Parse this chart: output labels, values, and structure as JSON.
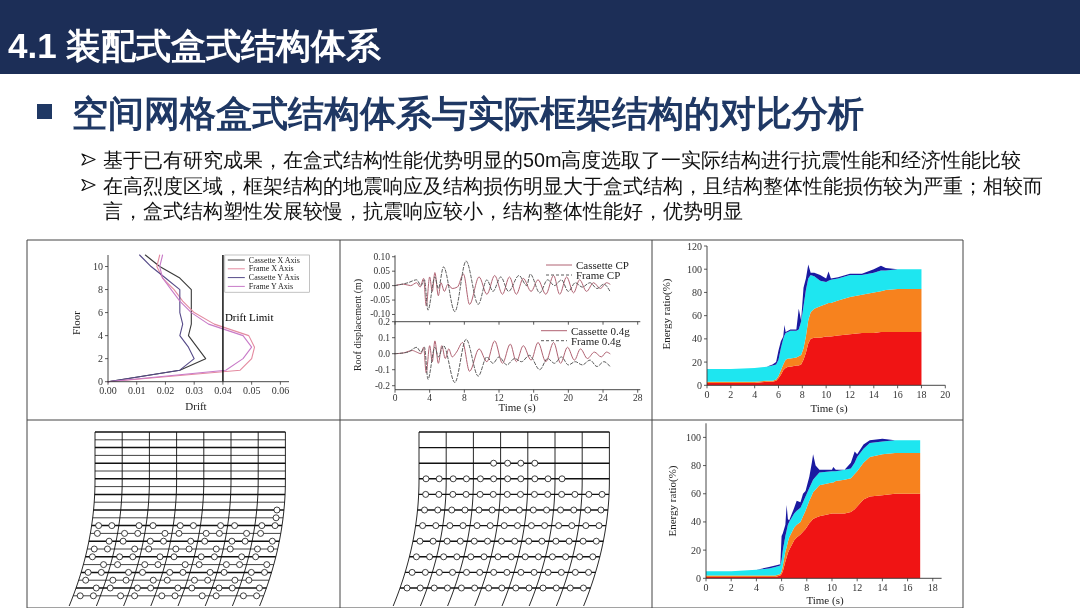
{
  "chart_data": [
    {
      "type": "other",
      "title": "4.1 装配式盒式结构体系",
      "subtitle": "空间网格盒式结构体系与实际框架结构的对比分析",
      "annotations": [
        "基于已有研究成果，在盒式结构性能优势明显的50m高度选取了一实际结构进行抗震性能和经济性能比较",
        "在高烈度区域，框架结构的地震响应及结构损伤明显大于盒式结构，且结构整体性能损伤较为严重；相较而言，盒式结构塑性发展较慢，抗震响应较小，结构整体性能好，优势明显"
      ]
    },
    {
      "type": "line",
      "xlabel": "Drift",
      "ylabel": "Floor",
      "xlim": [
        0,
        0.063
      ],
      "xticks": [
        {
          "value": 0,
          "label": "0.00"
        },
        0.01,
        0.02,
        0.03,
        0.04,
        0.05,
        0.06
      ],
      "ylim": [
        0,
        11
      ],
      "yticks": [
        0,
        2,
        4,
        6,
        8,
        10
      ],
      "legend": "top right",
      "series": [
        {
          "name": "Cassette X Axis",
          "color": "#3a3a3a",
          "x": [
            0,
            0.025,
            0.034,
            0.031,
            0.028,
            0.029,
            0.029,
            0.029,
            0.029,
            0.025,
            0.018,
            0.013
          ],
          "values": [
            0,
            1,
            2,
            3,
            4,
            5,
            6,
            7,
            8,
            9,
            10,
            11
          ]
        },
        {
          "name": "Frame X Axis",
          "color": "#e48aa0",
          "x": [
            0,
            0.046,
            0.05,
            0.051,
            0.049,
            0.037,
            0.03,
            0.026,
            0.023,
            0.019,
            0.017,
            0.018
          ],
          "values": [
            0,
            1,
            2,
            3,
            4,
            5,
            6,
            7,
            8,
            9,
            10,
            11
          ]
        },
        {
          "name": "Cassette Y Axis",
          "color": "#554a88",
          "x": [
            0,
            0.025,
            0.03,
            0.028,
            0.025,
            0.026,
            0.025,
            0.025,
            0.025,
            0.02,
            0.015,
            0.011
          ],
          "values": [
            0,
            1,
            2,
            3,
            4,
            5,
            6,
            7,
            8,
            9,
            10,
            11
          ]
        },
        {
          "name": "Frame Y Axis",
          "color": "#c87ac8",
          "x": [
            0,
            0.041,
            0.047,
            0.05,
            0.047,
            0.035,
            0.029,
            0.025,
            0.022,
            0.019,
            0.018,
            0.019
          ],
          "values": [
            0,
            1,
            2,
            3,
            4,
            5,
            6,
            7,
            8,
            9,
            10,
            11
          ]
        }
      ],
      "ref_lines": [
        {
          "axis": "x",
          "value": 0.04,
          "label": "Drift Limit",
          "color": "#000000"
        }
      ]
    },
    {
      "type": "line",
      "xlim": [
        0,
        28.3
      ],
      "xticks": [
        0,
        4,
        8,
        12,
        16,
        20,
        24,
        28
      ],
      "ylim": [
        -0.125,
        0.105
      ],
      "yticks": [
        {
          "value": -0.1,
          "label": "-0.10"
        },
        -0.05,
        {
          "value": 0,
          "label": "0.00"
        },
        0.05,
        {
          "value": 0.1,
          "label": "0.10"
        }
      ],
      "tick_labels": "y",
      "legend": "top right",
      "series": [
        {
          "name": "Cassette CP",
          "color": "#b06272",
          "line_style": "solid",
          "x": [
            0,
            1,
            1.8,
            2.5,
            2.9,
            3.3,
            3.6,
            4,
            4.3,
            4.6,
            5,
            5.3,
            5.7,
            6.1,
            6.6,
            7.2,
            7.9,
            8.6,
            9.7,
            10.6,
            11.5,
            12.4,
            13.2,
            14,
            14.8,
            15.7,
            16.5,
            17.4,
            18.3,
            19,
            19.8,
            20.6,
            21.3,
            22.1,
            22.9,
            23.7,
            24.4,
            24.8
          ],
          "values": [
            0,
            0.005,
            0,
            0.01,
            -0.005,
            0.025,
            -0.07,
            0.03,
            -0.02,
            0.045,
            -0.035,
            0.01,
            -0.02,
            0.005,
            -0.01,
            -0.005,
            0.04,
            -0.065,
            0.03,
            -0.03,
            0.035,
            -0.03,
            0.03,
            -0.03,
            0.025,
            -0.02,
            0.02,
            -0.03,
            0.035,
            -0.03,
            0.03,
            -0.025,
            0.02,
            -0.02,
            0.01,
            -0.01,
            0.01,
            0.005
          ]
        },
        {
          "name": "Frame CP",
          "color": "#5a5a5a",
          "line_style": "dashed",
          "x": [
            0,
            1.5,
            2.5,
            3,
            3.4,
            3.8,
            4.6,
            5,
            5.6,
            6.9,
            8.2,
            9.6,
            10.6,
            11.3,
            12.2,
            13.1,
            14.3,
            15.2,
            15.6,
            16.7,
            17.6,
            18.4,
            19.2,
            20,
            20.8,
            21.6,
            22.5,
            23.3,
            24.1,
            24.8
          ],
          "values": [
            0,
            0.01,
            0.02,
            0,
            0.02,
            -0.085,
            0.03,
            -0.01,
            0.065,
            -0.09,
            0.085,
            -0.065,
            0.02,
            -0.02,
            0.03,
            -0.02,
            0.035,
            0,
            0.04,
            -0.025,
            0.02,
            0,
            0.02,
            -0.02,
            0.01,
            -0.005,
            0.01,
            -0.01,
            0.005,
            -0.02
          ]
        }
      ]
    },
    {
      "type": "line",
      "xlabel": "Time (s)",
      "ylabel": "Roof displacement (m)",
      "xlim": [
        0,
        28.3
      ],
      "xticks": [
        0,
        4,
        8,
        12,
        16,
        20,
        24,
        28
      ],
      "ylim": [
        -0.225,
        0.2
      ],
      "yticks": [
        -0.2,
        -0.1,
        {
          "value": 0,
          "label": "0.0"
        },
        0.1,
        0.2
      ],
      "legend": "top right",
      "series": [
        {
          "name": "Cassette 0.4g",
          "color": "#b06272",
          "line_style": "solid",
          "x": [
            0,
            1,
            2,
            2.5,
            3,
            3.3,
            3.6,
            4,
            4.3,
            4.6,
            5,
            5.4,
            5.8,
            6.2,
            6.6,
            7.1,
            7.8,
            8.6,
            9.7,
            10.6,
            11.5,
            12.4,
            13.3,
            14,
            14.8,
            15.7,
            16.5,
            17.4,
            18.3,
            19.1,
            19.9,
            20.7,
            21.4,
            22.2,
            23,
            23.8,
            24.4,
            24.8
          ],
          "values": [
            0,
            0.005,
            0.02,
            0.01,
            0,
            0.04,
            -0.12,
            0.05,
            -0.05,
            0.08,
            -0.06,
            0.05,
            -0.03,
            0.03,
            -0.02,
            0.01,
            0.07,
            -0.11,
            0.03,
            -0.05,
            0.08,
            -0.06,
            0.06,
            -0.05,
            0.05,
            -0.04,
            0.07,
            -0.05,
            0.07,
            -0.06,
            0.04,
            -0.04,
            0.03,
            -0.03,
            0.01,
            -0.02,
            0.01,
            0
          ]
        },
        {
          "name": "Frame 0.4g",
          "color": "#5a5a5a",
          "line_style": "dashed",
          "x": [
            0,
            1.5,
            2.5,
            3,
            3.4,
            3.8,
            4.6,
            5,
            5.6,
            6.9,
            8.2,
            9.6,
            10.6,
            11.3,
            12,
            12.9,
            13.8,
            14.6,
            15.5,
            16.7,
            17.6,
            18.4,
            19.2,
            20,
            20.8,
            21.6,
            22.5,
            23.3,
            24.1,
            24.8
          ],
          "values": [
            0,
            0.01,
            0.04,
            0.01,
            0.04,
            -0.16,
            0.04,
            -0.02,
            0.05,
            -0.18,
            0.09,
            -0.14,
            -0.02,
            -0.06,
            -0.02,
            -0.07,
            -0.03,
            -0.05,
            -0.01,
            -0.1,
            -0.03,
            -0.06,
            -0.02,
            -0.07,
            -0.05,
            -0.07,
            -0.04,
            -0.08,
            -0.05,
            -0.08
          ]
        }
      ]
    },
    {
      "type": "area",
      "stacked": true,
      "xlabel": "Time (s)",
      "ylabel": "Energy ratio(%)",
      "xlim": [
        0,
        20
      ],
      "xticks": [
        0,
        2,
        4,
        6,
        8,
        10,
        12,
        14,
        16,
        18,
        20
      ],
      "ylim": [
        0,
        120
      ],
      "yticks": [
        0,
        20,
        40,
        60,
        80,
        100,
        120
      ],
      "x": [
        0,
        2,
        4,
        5,
        5.5,
        5.8,
        6,
        6.2,
        6.4,
        6.5,
        6.6,
        6.8,
        7,
        7.5,
        7.7,
        7.9,
        8.1,
        8.3,
        8.5,
        8.7,
        9,
        9.5,
        10,
        10.2,
        10.4,
        11,
        12,
        13,
        14,
        14.6,
        15,
        16,
        17,
        18
      ],
      "series": [
        {
          "color": "#f01414",
          "values": [
            2,
            2,
            2,
            3,
            3,
            4,
            6,
            9,
            13,
            14,
            15,
            16,
            16,
            17,
            17,
            18,
            22,
            28,
            36,
            40,
            41,
            41,
            42,
            42,
            42,
            43,
            44,
            45,
            45,
            46,
            46,
            46,
            46,
            46
          ]
        },
        {
          "color": "#f7821e",
          "values": [
            1,
            1,
            1,
            1,
            1,
            1,
            2,
            4,
            5,
            6,
            7,
            7,
            7,
            7,
            8,
            8,
            10,
            14,
            20,
            23,
            25,
            27,
            28,
            29,
            29,
            30,
            32,
            33,
            35,
            35,
            36,
            37,
            37,
            37
          ]
        },
        {
          "color": "#1ee6f0",
          "values": [
            11,
            11,
            12,
            12,
            13,
            13,
            14,
            19,
            22,
            23,
            23,
            23,
            24,
            23,
            23,
            29,
            36,
            40,
            36,
            32,
            28,
            22,
            19,
            19,
            20,
            19,
            19,
            17,
            17,
            18,
            17,
            17,
            17,
            17
          ]
        },
        {
          "color": "#1a1aa0",
          "values": [
            0,
            0,
            0,
            0,
            1,
            2,
            8,
            6,
            2,
            9,
            1,
            1,
            1,
            1,
            18,
            1,
            16,
            10,
            12,
            2,
            3,
            5,
            3,
            8,
            1,
            1,
            1,
            1,
            3,
            4,
            2,
            0,
            0,
            0
          ]
        }
      ]
    },
    {
      "type": "area",
      "stacked": true,
      "xlabel": "Time (s)",
      "ylabel": "Energy ratio(%)",
      "xlim": [
        0,
        18.7
      ],
      "xticks": [
        0,
        2,
        4,
        6,
        8,
        10,
        12,
        14,
        16,
        18
      ],
      "ylim": [
        0,
        110
      ],
      "yticks": [
        0,
        20,
        40,
        60,
        80,
        100
      ],
      "x": [
        0,
        2,
        4,
        5,
        5.5,
        5.9,
        6,
        6.1,
        6.3,
        6.4,
        6.5,
        6.6,
        7,
        7.2,
        7.5,
        7.7,
        7.9,
        8.2,
        8.4,
        8.5,
        8.7,
        9,
        10,
        10.1,
        10.3,
        11,
        11.5,
        11.8,
        12,
        12.5,
        13,
        14,
        15,
        16,
        17
      ],
      "series": [
        {
          "color": "#f01414",
          "values": [
            1,
            1,
            1,
            1,
            1,
            2,
            3,
            5,
            12,
            15,
            18,
            20,
            27,
            29,
            31,
            33,
            35,
            39,
            41,
            42,
            43,
            44,
            46,
            46,
            46,
            46,
            47,
            49,
            51,
            56,
            58,
            59,
            60,
            60,
            60
          ]
        },
        {
          "color": "#f7821e",
          "values": [
            1,
            1,
            1,
            1,
            1,
            1,
            2,
            4,
            7,
            7,
            8,
            9,
            9,
            9,
            9,
            11,
            13,
            16,
            18,
            19,
            20,
            22,
            22,
            22,
            23,
            24,
            24,
            25,
            25,
            26,
            28,
            29,
            29,
            29,
            29
          ]
        },
        {
          "color": "#1ee6f0",
          "values": [
            3,
            3,
            4,
            5,
            6,
            6,
            8,
            11,
            11,
            12,
            12,
            11,
            10,
            10,
            10,
            10,
            10,
            9,
            9,
            9,
            9,
            9,
            8,
            8,
            7,
            7,
            7,
            8,
            10,
            10,
            10,
            9,
            9,
            9,
            9
          ]
        },
        {
          "color": "#1a1aa0",
          "values": [
            0,
            0,
            0,
            1,
            1,
            1,
            17,
            12,
            8,
            18,
            4,
            1,
            4,
            7,
            4,
            6,
            4,
            8,
            14,
            18,
            8,
            2,
            1,
            3,
            1,
            0,
            4,
            8,
            2,
            3,
            2,
            2,
            0,
            0,
            0
          ]
        }
      ]
    }
  ]
}
